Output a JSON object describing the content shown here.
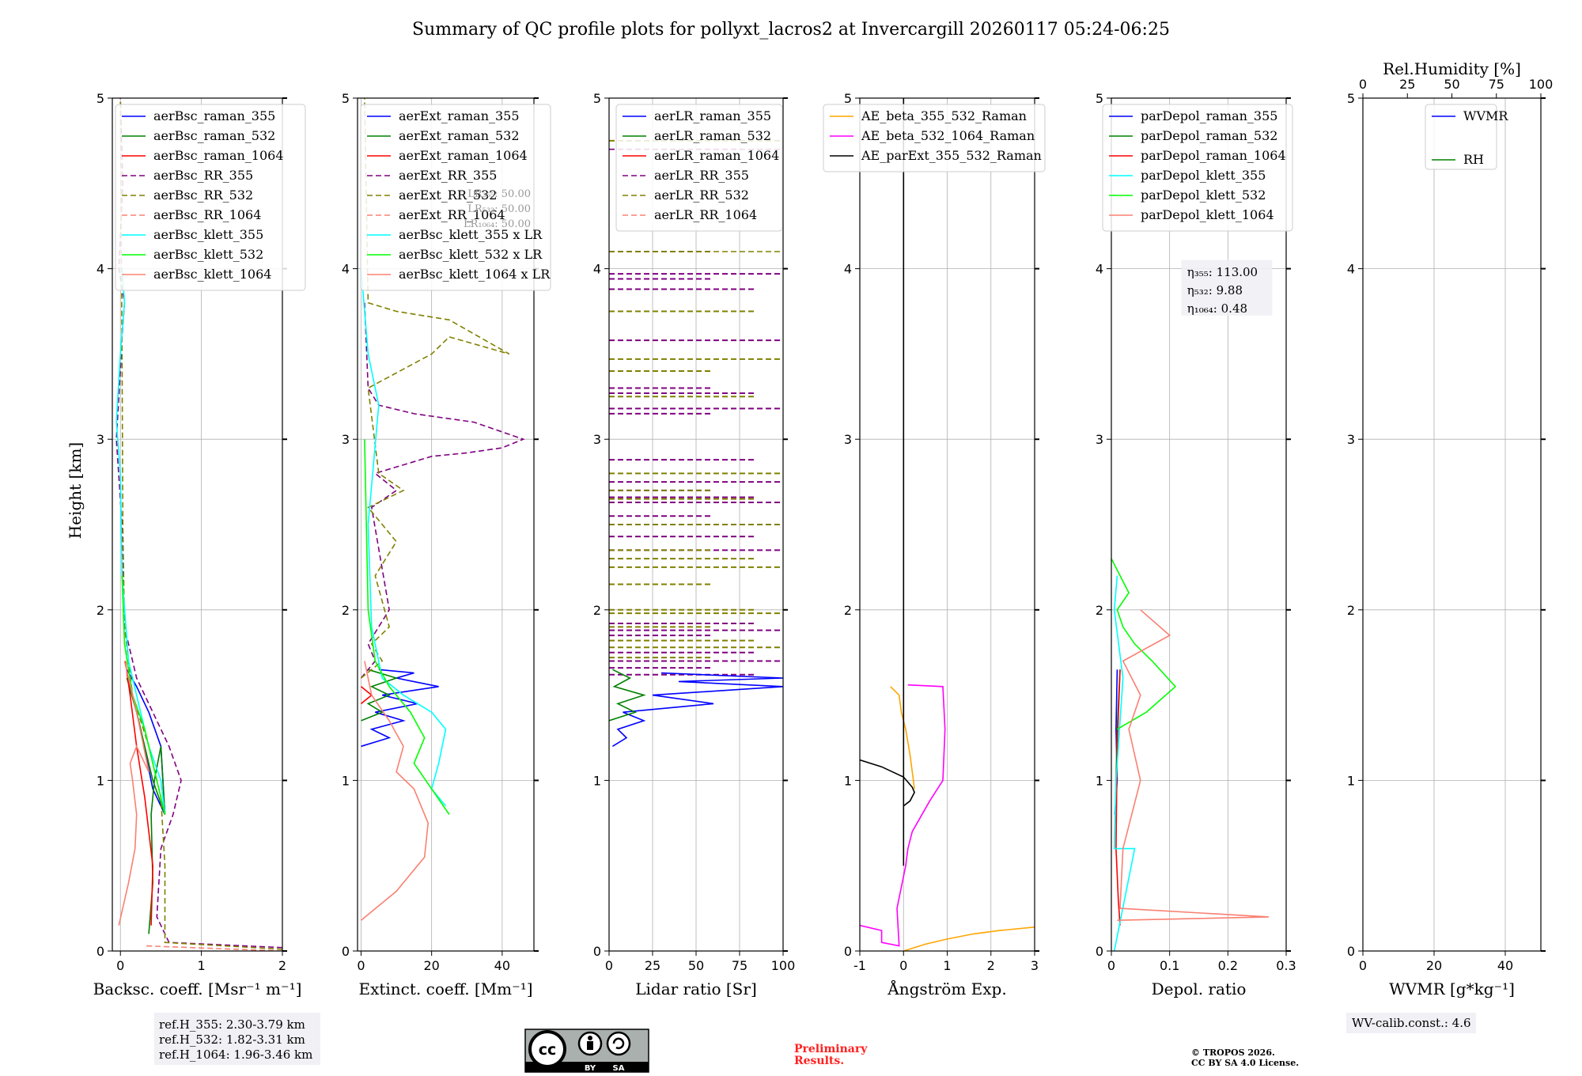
{
  "figure": {
    "title": "Summary of QC profile plots for pollyxt_lacros2 at Invercargill 20260117 05:24-06:25",
    "ylabel": "Height [km]",
    "ref_heights": [
      "ref.H_355: 2.30-3.79 km",
      "ref.H_532: 1.82-3.31 km",
      "ref.H_1064: 1.96-3.46 km"
    ],
    "preliminary": [
      "Preliminary",
      "Results."
    ],
    "copyright": [
      "© TROPOS 2026.",
      "CC BY SA 4.0 License."
    ],
    "license_badge": [
      "cc",
      "BY",
      "SA"
    ],
    "wv_calib": "WV-calib.const.: 4.6"
  },
  "colors": {
    "raman_355": "#0000ff",
    "raman_532": "#008000",
    "raman_1064": "#ff0000",
    "rr_355": "#800080",
    "rr_532": "#808000",
    "rr_1064": "#fa8072",
    "klett_355": "#00ffff",
    "klett_532": "#00ff00",
    "klett_1064": "#fa8072",
    "ae_1": "#ffa500",
    "ae_2": "#ff00ff",
    "ae_3": "#000000",
    "wvmr": "#0000ff",
    "rh": "#008000"
  },
  "chart_data": [
    {
      "id": "bsc",
      "type": "line",
      "xlabel": "Backsc. coeff. [Msr⁻¹ m⁻¹]",
      "ylabel": "Height [km]",
      "xlim": [
        -0.1,
        2
      ],
      "ylim": [
        0,
        5
      ],
      "xticks": [
        0,
        1,
        2
      ],
      "yticks": [
        0,
        1,
        2,
        3,
        4,
        5
      ],
      "legend_loc": "upper-left",
      "series": [
        {
          "name": "aerBsc_raman_355",
          "color": "raman_355",
          "dash": false,
          "x": [
            0.08,
            0.2,
            0.35,
            0.5,
            0.55,
            0.4,
            0.25,
            0.1
          ],
          "y": [
            1.65,
            1.55,
            1.4,
            1.2,
            0.8,
            0.95,
            1.3,
            1.6
          ]
        },
        {
          "name": "aerBsc_raman_532",
          "color": "raman_532",
          "dash": false,
          "x": [
            0.35,
            0.4,
            0.38,
            0.42,
            0.5,
            0.55,
            0.4,
            0.2,
            0.08
          ],
          "y": [
            0.1,
            0.4,
            0.8,
            1.0,
            1.2,
            0.8,
            1.0,
            1.4,
            1.6
          ]
        },
        {
          "name": "aerBsc_raman_1064",
          "color": "raman_1064",
          "dash": false,
          "x": [
            0.38,
            0.4,
            0.3,
            0.2,
            0.12,
            0.06
          ],
          "y": [
            0.15,
            0.5,
            0.9,
            1.2,
            1.5,
            1.7
          ]
        },
        {
          "name": "aerBsc_RR_355",
          "color": "rr_355",
          "dash": true,
          "x": [
            2.0,
            0.6,
            0.45,
            0.5,
            0.65,
            0.75,
            0.6,
            0.4,
            0.2,
            0.05,
            0.02,
            -0.05,
            0.0,
            0.02,
            0.05,
            -0.02,
            0.03,
            0.0
          ],
          "y": [
            0.02,
            0.05,
            0.2,
            0.6,
            0.8,
            1.0,
            1.2,
            1.4,
            1.6,
            1.9,
            2.5,
            3.0,
            3.4,
            3.6,
            3.8,
            4.0,
            4.5,
            5.0
          ]
        },
        {
          "name": "aerBsc_RR_532",
          "color": "rr_532",
          "dash": true,
          "x": [
            2.0,
            0.55,
            0.55,
            0.5,
            0.35,
            0.15,
            0.05,
            0.03,
            0.02,
            0.0
          ],
          "y": [
            0.01,
            0.05,
            0.5,
            0.9,
            1.2,
            1.5,
            1.9,
            2.5,
            3.5,
            5.0
          ]
        },
        {
          "name": "aerBsc_RR_1064",
          "color": "rr_1064",
          "dash": true,
          "x": [
            2.0,
            0.3
          ],
          "y": [
            0.0,
            0.03
          ]
        },
        {
          "name": "aerBsc_klett_355",
          "color": "klett_355",
          "dash": false,
          "x": [
            0.55,
            0.5,
            0.35,
            0.25,
            0.1,
            0.02,
            0.0,
            -0.05,
            0.0,
            0.05,
            0.02
          ],
          "y": [
            0.8,
            1.0,
            1.2,
            1.4,
            1.7,
            2.2,
            2.8,
            3.1,
            3.5,
            3.8,
            4.0
          ]
        },
        {
          "name": "aerBsc_klett_532",
          "color": "klett_532",
          "dash": false,
          "x": [
            0.55,
            0.45,
            0.3,
            0.15,
            0.05,
            0.02
          ],
          "y": [
            0.8,
            1.0,
            1.3,
            1.5,
            1.8,
            2.2
          ]
        },
        {
          "name": "aerBsc_klett_1064",
          "color": "klett_1064",
          "dash": false,
          "x": [
            -0.02,
            0.1,
            0.18,
            0.2,
            0.15,
            0.12,
            0.2,
            0.35,
            0.2,
            0.05
          ],
          "y": [
            0.15,
            0.4,
            0.6,
            0.8,
            1.0,
            1.1,
            1.2,
            1.05,
            1.4,
            1.7
          ]
        }
      ]
    },
    {
      "id": "ext",
      "type": "line",
      "xlabel": "Extinct. coeff. [Mm⁻¹]",
      "xlim": [
        -1,
        49
      ],
      "ylim": [
        0,
        5
      ],
      "xticks": [
        0,
        20,
        40
      ],
      "yticks": [
        0,
        1,
        2,
        3,
        4,
        5
      ],
      "legend_loc": "upper-left",
      "legend_overlap_text": [
        "LR₃₅₅: 50.00",
        "LR₅₃₂: 50.00",
        "LR₁₀₆₄: 50.00"
      ],
      "series": [
        {
          "name": "aerExt_raman_355",
          "color": "raman_355",
          "dash": false,
          "x": [
            0,
            8,
            3,
            12,
            4,
            16,
            6,
            22,
            10,
            15,
            5
          ],
          "y": [
            1.2,
            1.25,
            1.3,
            1.35,
            1.4,
            1.45,
            1.5,
            1.55,
            1.6,
            1.63,
            1.65
          ]
        },
        {
          "name": "aerExt_raman_532",
          "color": "raman_532",
          "dash": false,
          "x": [
            0,
            6,
            2,
            8,
            3,
            10,
            2
          ],
          "y": [
            1.35,
            1.4,
            1.45,
            1.5,
            1.55,
            1.6,
            1.65
          ]
        },
        {
          "name": "aerExt_raman_1064",
          "color": "raman_1064",
          "dash": false,
          "x": [
            0,
            3,
            0
          ],
          "y": [
            1.45,
            1.5,
            1.55
          ]
        },
        {
          "name": "aerExt_RR_355",
          "color": "rr_355",
          "dash": true,
          "x": [
            0,
            4,
            2,
            8,
            3,
            10,
            4,
            20,
            30,
            40,
            46,
            32,
            15,
            5,
            2,
            1
          ],
          "y": [
            1.6,
            1.7,
            1.8,
            2.0,
            2.6,
            2.7,
            2.8,
            2.9,
            2.92,
            2.95,
            3.0,
            3.1,
            3.15,
            3.2,
            3.3,
            3.8
          ]
        },
        {
          "name": "aerExt_RR_532",
          "color": "rr_532",
          "dash": true,
          "x": [
            0,
            6,
            3,
            8,
            4,
            10,
            2,
            12,
            5,
            2,
            20,
            25,
            42,
            25,
            10,
            2,
            1
          ],
          "y": [
            1.6,
            1.7,
            1.8,
            1.9,
            2.2,
            2.4,
            2.6,
            2.7,
            2.8,
            3.3,
            3.5,
            3.6,
            3.5,
            3.7,
            3.75,
            3.8,
            5.0
          ]
        },
        {
          "name": "aerExt_RR_1064",
          "color": "rr_1064",
          "dash": true,
          "x": [],
          "y": []
        },
        {
          "name": "aerBsc_klett_355 x LR",
          "color": "klett_355",
          "dash": false,
          "x": [
            24,
            20,
            22,
            24,
            20,
            12,
            6,
            3,
            2,
            5,
            2,
            0
          ],
          "y": [
            0.85,
            0.95,
            1.1,
            1.3,
            1.4,
            1.5,
            1.6,
            1.9,
            2.5,
            3.2,
            3.5,
            4.0
          ]
        },
        {
          "name": "aerBsc_klett_532 x LR",
          "color": "klett_532",
          "dash": false,
          "x": [
            25,
            20,
            15,
            18,
            14,
            8,
            4,
            2,
            1
          ],
          "y": [
            0.8,
            0.95,
            1.1,
            1.25,
            1.4,
            1.55,
            1.7,
            2.0,
            3.0
          ]
        },
        {
          "name": "aerBsc_klett_1064 x LR",
          "color": "klett_1064",
          "dash": false,
          "x": [
            0,
            10,
            18,
            19,
            15,
            10,
            12,
            8,
            3,
            1
          ],
          "y": [
            0.18,
            0.35,
            0.55,
            0.75,
            0.95,
            1.05,
            1.2,
            1.35,
            1.5,
            1.7
          ]
        }
      ]
    },
    {
      "id": "lr",
      "type": "line",
      "xlabel": "Lidar ratio [Sr]",
      "xlim": [
        0,
        100
      ],
      "ylim": [
        0,
        5
      ],
      "xticks": [
        0,
        25,
        50,
        75,
        100
      ],
      "yticks": [
        0,
        1,
        2,
        3,
        4,
        5
      ],
      "legend_loc": "upper-left",
      "series": [
        {
          "name": "aerLR_raman_355",
          "color": "raman_355",
          "dash": false,
          "x": [
            2,
            10,
            5,
            20,
            8,
            60,
            25,
            100,
            40,
            100,
            30
          ],
          "y": [
            1.2,
            1.25,
            1.3,
            1.35,
            1.4,
            1.45,
            1.5,
            1.55,
            1.58,
            1.6,
            1.63
          ]
        },
        {
          "name": "aerLR_raman_532",
          "color": "raman_532",
          "dash": false,
          "x": [
            0,
            15,
            5,
            20,
            3,
            12,
            2
          ],
          "y": [
            1.35,
            1.4,
            1.45,
            1.5,
            1.55,
            1.6,
            1.65
          ]
        },
        {
          "name": "aerLR_raman_1064",
          "color": "raman_1064",
          "dash": false,
          "x": [],
          "y": []
        },
        {
          "name": "aerLR_RR_355",
          "color": "rr_355",
          "dash": true,
          "x": [
            0,
            100
          ],
          "y": [
            4.7,
            4.7
          ]
        },
        {
          "name": "aerLR_RR_532",
          "color": "rr_532",
          "dash": true,
          "x": [
            0,
            100
          ],
          "y": [
            4.1,
            4.1
          ]
        },
        {
          "name": "aerLR_RR_1064",
          "color": "rr_1064",
          "dash": true,
          "x": [],
          "y": []
        }
      ],
      "hlines": {
        "rr_355": [
          3.97,
          3.94,
          3.88,
          3.58,
          3.3,
          3.27,
          3.18,
          3.15,
          2.88,
          2.75,
          2.7,
          2.66,
          2.63,
          2.55,
          2.43,
          2.35,
          2.15,
          1.92,
          1.88,
          1.85,
          1.75,
          1.7,
          1.66,
          1.62
        ],
        "rr_532": [
          4.75,
          4.1,
          3.75,
          3.47,
          3.4,
          3.25,
          2.8,
          2.7,
          2.65,
          2.5,
          2.35,
          2.3,
          2.25,
          2.15,
          2.0,
          1.98,
          1.9,
          1.82,
          1.78,
          1.72
        ]
      }
    },
    {
      "id": "ae",
      "type": "line",
      "xlabel": "Ångström Exp.",
      "xlim": [
        -1,
        3
      ],
      "ylim": [
        0,
        5
      ],
      "xticks": [
        -1,
        0,
        1,
        2,
        3
      ],
      "yticks": [
        0,
        1,
        2,
        3,
        4,
        5
      ],
      "legend_loc": "upper-center",
      "series": [
        {
          "name": "AE_beta_355_532_Raman",
          "color": "ae_1",
          "dash": false,
          "x": [
            0,
            0.5,
            1.0,
            1.6,
            2.2,
            3.0
          ],
          "y": [
            0,
            0.04,
            0.07,
            0.1,
            0.12,
            0.14
          ],
          "x2": [
            0.25,
            0.15,
            0.05,
            -0.05,
            -0.1,
            -0.3
          ],
          "y2": [
            0.95,
            1.15,
            1.3,
            1.4,
            1.5,
            1.55
          ]
        },
        {
          "name": "AE_beta_532_1064_Raman",
          "color": "ae_2",
          "dash": false,
          "x": [
            -1,
            -0.5,
            -0.5,
            -0.1,
            -0.15,
            0.05,
            0.1,
            0.2,
            0.6,
            0.9,
            0.95,
            0.9,
            0.1
          ],
          "y": [
            0.15,
            0.12,
            0.05,
            0.03,
            0.25,
            0.5,
            0.6,
            0.7,
            0.88,
            1.0,
            1.3,
            1.55,
            1.56
          ]
        },
        {
          "name": "AE_parExt_355_532_Raman",
          "color": "ae_3",
          "dash": false,
          "x": [
            -1,
            -0.5,
            0,
            0.2,
            0.25,
            0.15,
            0,
            0,
            0
          ],
          "y": [
            1.12,
            1.08,
            1.02,
            0.96,
            0.93,
            0.88,
            0.85,
            0.5,
            5.0
          ]
        }
      ]
    },
    {
      "id": "depol",
      "type": "line",
      "xlabel": "Depol. ratio",
      "xlim": [
        0,
        0.3
      ],
      "ylim": [
        0,
        5
      ],
      "xticks": [
        0.0,
        0.1,
        0.2,
        0.3
      ],
      "yticks": [
        0,
        1,
        2,
        3,
        4,
        5
      ],
      "legend_loc": "upper-left",
      "series": [
        {
          "name": "parDepol_raman_355",
          "color": "raman_355",
          "dash": false,
          "x": [
            0.01,
            0.008,
            0.01,
            0.006
          ],
          "y": [
            1.65,
            1.3,
            1.0,
            0.8
          ]
        },
        {
          "name": "parDepol_raman_532",
          "color": "raman_532",
          "dash": false,
          "x": [
            0.015,
            0.01,
            0.008
          ],
          "y": [
            1.65,
            1.3,
            1.0
          ]
        },
        {
          "name": "parDepol_raman_1064",
          "color": "raman_1064",
          "dash": false,
          "x": [
            0.015,
            0.01,
            0.008,
            0.012,
            0.015
          ],
          "y": [
            1.65,
            1.2,
            0.6,
            0.3,
            0.15
          ]
        },
        {
          "name": "parDepol_klett_355",
          "color": "klett_355",
          "dash": false,
          "x": [
            0.005,
            0.04,
            0.005,
            0.008,
            0.02,
            0.005,
            0.01
          ],
          "y": [
            0.0,
            0.6,
            0.6,
            1.0,
            1.6,
            2.0,
            2.2
          ]
        },
        {
          "name": "parDepol_klett_532",
          "color": "klett_532",
          "dash": false,
          "x": [
            0.01,
            0.06,
            0.11,
            0.07,
            0.04,
            0.02,
            0.01,
            0.03,
            0.0
          ],
          "y": [
            1.3,
            1.4,
            1.55,
            1.7,
            1.8,
            1.9,
            2.0,
            2.1,
            2.3
          ]
        },
        {
          "name": "parDepol_klett_1064",
          "color": "klett_1064",
          "dash": false,
          "x": [
            0.01,
            0.27,
            0.015,
            0.02,
            0.05,
            0.03,
            0.05,
            0.02,
            0.1,
            0.05
          ],
          "y": [
            0.18,
            0.2,
            0.25,
            0.6,
            1.0,
            1.3,
            1.5,
            1.7,
            1.85,
            2.0
          ]
        }
      ],
      "eta_labels": [
        "η₃₅₅: 113.00",
        "η₅₃₂: 9.88",
        "η₁₀₆₄: 0.48"
      ]
    },
    {
      "id": "wv",
      "type": "line",
      "xlabel": "WVMR [g*kg⁻¹]",
      "xlim": [
        0,
        50
      ],
      "ylim": [
        0,
        5
      ],
      "xticks": [
        0,
        20,
        40
      ],
      "yticks": [
        0,
        1,
        2,
        3,
        4,
        5
      ],
      "top_xlabel": "Rel.Humidity [%]",
      "top_xlim": [
        0,
        100
      ],
      "top_xticks": [
        0,
        25,
        50,
        75,
        100
      ],
      "series": [
        {
          "name": "WVMR",
          "color": "wvmr",
          "dash": false,
          "x": [],
          "y": []
        },
        {
          "name": "RH",
          "color": "rh",
          "dash": false,
          "x": [],
          "y": []
        }
      ]
    }
  ]
}
